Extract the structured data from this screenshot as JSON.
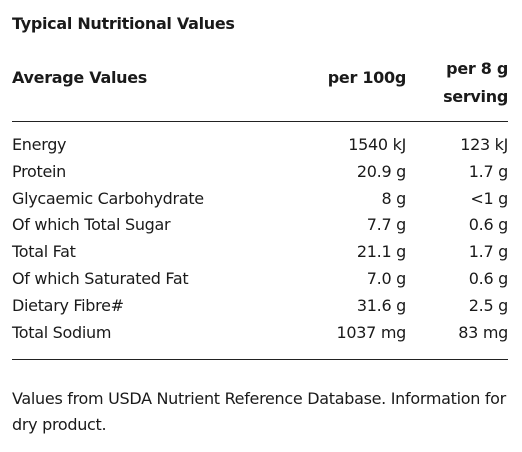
{
  "table": {
    "title": "Typical Nutritional Values",
    "header": {
      "label": "Average Values",
      "col1": "per 100g",
      "col2": "per 8 g serving"
    },
    "rows": [
      {
        "label": "Energy",
        "per100": "1540 kJ",
        "perServing": "123 kJ"
      },
      {
        "label": "Protein",
        "per100": "20.9 g",
        "perServing": "1.7 g"
      },
      {
        "label": "Glycaemic Carbohydrate",
        "per100": "8 g",
        "perServing": "<1 g"
      },
      {
        "label": "Of which Total Sugar",
        "per100": "7.7 g",
        "perServing": "0.6 g"
      },
      {
        "label": "Total Fat",
        "per100": "21.1 g",
        "perServing": "1.7 g"
      },
      {
        "label": "Of which Saturated Fat",
        "per100": "7.0 g",
        "perServing": "0.6 g"
      },
      {
        "label": "Dietary Fibre#",
        "per100": "31.6 g",
        "perServing": "2.5 g"
      },
      {
        "label": "Total Sodium",
        "per100": "1037 mg",
        "perServing": "83 mg"
      }
    ],
    "footnote": "Values from USDA Nutrient Reference Database. Information for dry product."
  }
}
